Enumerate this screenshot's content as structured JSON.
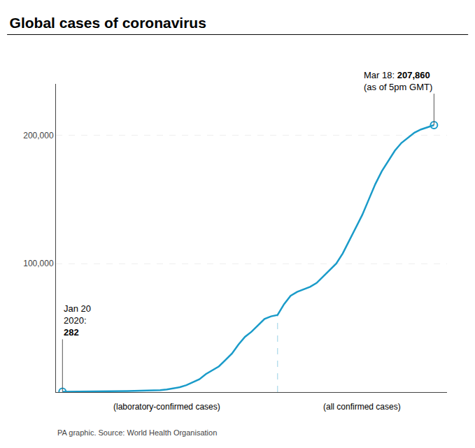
{
  "chart_data": {
    "type": "line",
    "title": "Global cases of coronavirus",
    "source": "PA graphic. Source: World Health Organisation",
    "color": "#1a9bc9",
    "marker": "circle-open",
    "x": [
      0,
      1,
      2,
      3,
      4,
      5,
      6,
      7,
      8,
      9,
      10,
      11,
      12,
      13,
      14,
      15,
      16,
      17,
      18,
      19,
      20,
      21,
      22,
      23,
      24,
      25,
      26,
      27,
      28,
      29,
      30,
      31,
      32,
      33,
      34,
      35,
      36,
      37,
      38,
      39,
      40,
      41,
      42,
      43,
      44,
      45,
      46,
      47,
      48,
      49,
      50,
      51,
      52,
      53,
      54,
      55,
      56,
      57
    ],
    "values": [
      282,
      300,
      320,
      360,
      420,
      500,
      580,
      650,
      700,
      770,
      850,
      920,
      980,
      1050,
      1200,
      1500,
      2000,
      2800,
      3800,
      5400,
      7700,
      10000,
      14000,
      17000,
      20000,
      25000,
      30000,
      37000,
      43000,
      47000,
      52000,
      57000,
      59000,
      60000,
      68500,
      75000,
      78000,
      80000,
      82000,
      85000,
      90000,
      95000,
      100000,
      108000,
      118000,
      128000,
      138000,
      150000,
      162000,
      172000,
      180000,
      188000,
      194000,
      198000,
      202000,
      204500,
      206000,
      207860
    ],
    "xlim": [
      -1,
      59
    ],
    "ylim": [
      0,
      240000
    ],
    "yticks": [
      {
        "value": 100000,
        "label": "100,000"
      },
      {
        "value": 200000,
        "label": "200,000"
      }
    ],
    "grid": true,
    "tick_labels": "y",
    "transition_x": 33,
    "segment_labels": [
      "(laboratory-confirmed cases)",
      "(all confirmed cases)"
    ],
    "annotations": [
      {
        "x": 0,
        "y": 282,
        "lines": [
          {
            "text": "Jan 20"
          },
          {
            "text": "2020:"
          },
          {
            "bold": "282"
          }
        ]
      },
      {
        "x": 57,
        "y": 207860,
        "lines": [
          {
            "text": "Mar 18: ",
            "bold": "207,860"
          },
          {
            "text": "(as of 5pm GMT)"
          }
        ]
      }
    ]
  }
}
